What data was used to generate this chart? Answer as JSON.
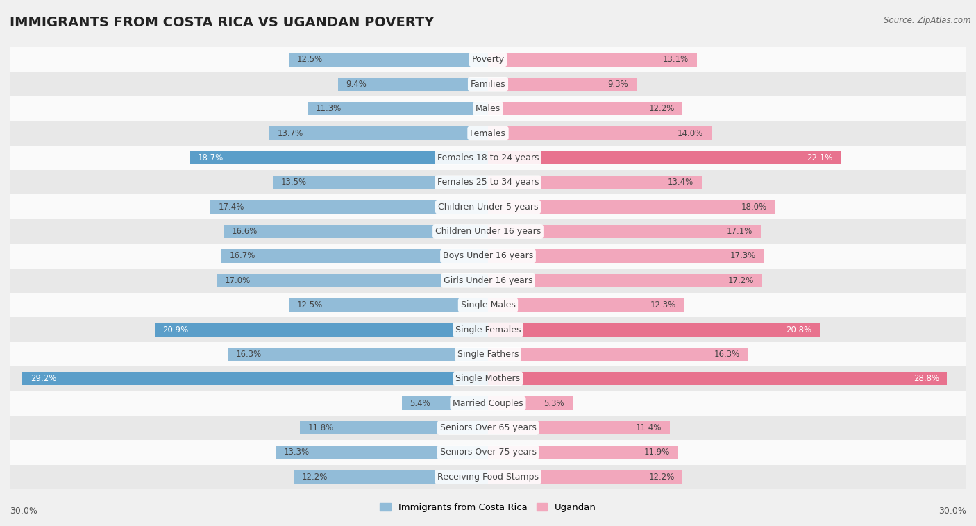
{
  "title": "IMMIGRANTS FROM COSTA RICA VS UGANDAN POVERTY",
  "source": "Source: ZipAtlas.com",
  "categories": [
    "Poverty",
    "Families",
    "Males",
    "Females",
    "Females 18 to 24 years",
    "Females 25 to 34 years",
    "Children Under 5 years",
    "Children Under 16 years",
    "Boys Under 16 years",
    "Girls Under 16 years",
    "Single Males",
    "Single Females",
    "Single Fathers",
    "Single Mothers",
    "Married Couples",
    "Seniors Over 65 years",
    "Seniors Over 75 years",
    "Receiving Food Stamps"
  ],
  "left_values": [
    12.5,
    9.4,
    11.3,
    13.7,
    18.7,
    13.5,
    17.4,
    16.6,
    16.7,
    17.0,
    12.5,
    20.9,
    16.3,
    29.2,
    5.4,
    11.8,
    13.3,
    12.2
  ],
  "right_values": [
    13.1,
    9.3,
    12.2,
    14.0,
    22.1,
    13.4,
    18.0,
    17.1,
    17.3,
    17.2,
    12.3,
    20.8,
    16.3,
    28.8,
    5.3,
    11.4,
    11.9,
    12.2
  ],
  "left_color_normal": "#92bcd8",
  "right_color_normal": "#f2a7bc",
  "left_color_highlight": "#5b9ec9",
  "right_color_highlight": "#e8728e",
  "highlight_rows": [
    4,
    11,
    13
  ],
  "max_val": 30.0,
  "background_color": "#f0f0f0",
  "row_bg_even": "#fafafa",
  "row_bg_odd": "#e8e8e8",
  "legend_left": "Immigrants from Costa Rica",
  "legend_right": "Ugandan",
  "title_fontsize": 14,
  "label_fontsize": 9,
  "value_fontsize": 8.5
}
